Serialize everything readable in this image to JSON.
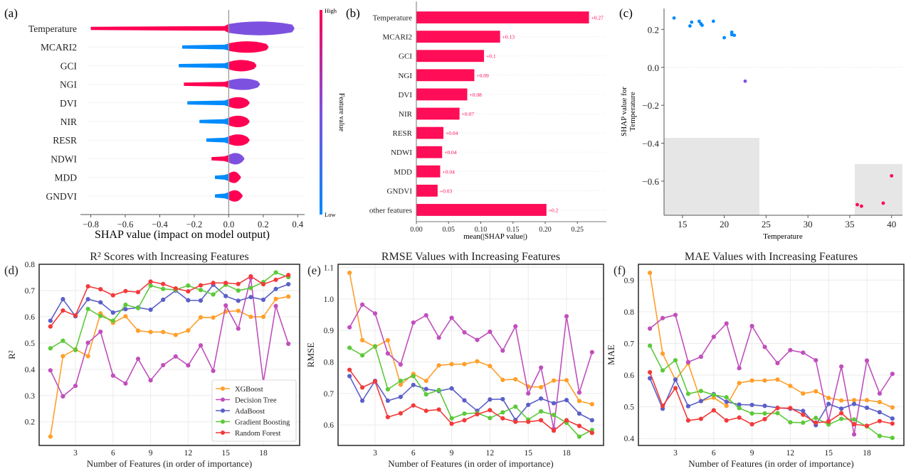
{
  "colors": {
    "shap_high": "#ff0052",
    "shap_mid": "#7d51e0",
    "shap_low": "#008bfb",
    "bar": "#ff0d57",
    "bar_label": "#ff0d57",
    "xgboost": "#ff9f2a",
    "decision_tree": "#c04fbd",
    "adaboost": "#5b5fc7",
    "gradient_boosting": "#5cc93a",
    "random_forest": "#f23a3a",
    "highlight": "#e6e6e6",
    "grid": "#ebebeb"
  },
  "chart_data": [
    {
      "id": "a",
      "panel_label": "(a)",
      "type": "violin",
      "title": "",
      "xlabel": "SHAP value (impact on model output)",
      "ylabel": "",
      "xlim": [
        -0.86,
        0.44
      ],
      "xticks": [
        "-0.8",
        "-0.6",
        "-0.4",
        "-0.2",
        "0.0",
        "0.2",
        "0.4"
      ],
      "xtick_values": [
        -0.8,
        -0.6,
        -0.4,
        -0.2,
        0.0,
        0.2,
        0.4
      ],
      "colorbar": {
        "label": "Feature value",
        "high": "High",
        "low": "Low"
      },
      "features": [
        {
          "name": "Temperature",
          "min": -0.8,
          "max": 0.38,
          "neg_color": "high",
          "pos_color": "mid"
        },
        {
          "name": "MCARI2",
          "min": -0.27,
          "max": 0.23,
          "neg_color": "low",
          "pos_color": "high"
        },
        {
          "name": "GCI",
          "min": -0.29,
          "max": 0.16,
          "neg_color": "low",
          "pos_color": "high"
        },
        {
          "name": "NGI",
          "min": -0.26,
          "max": 0.18,
          "neg_color": "high",
          "pos_color": "mid"
        },
        {
          "name": "DVI",
          "min": -0.24,
          "max": 0.12,
          "neg_color": "low",
          "pos_color": "high"
        },
        {
          "name": "NIR",
          "min": -0.17,
          "max": 0.12,
          "neg_color": "low",
          "pos_color": "high"
        },
        {
          "name": "RESR",
          "min": -0.13,
          "max": 0.12,
          "neg_color": "low",
          "pos_color": "high"
        },
        {
          "name": "NDWI",
          "min": -0.1,
          "max": 0.09,
          "neg_color": "high",
          "pos_color": "mid"
        },
        {
          "name": "MDD",
          "min": -0.08,
          "max": 0.07,
          "neg_color": "low",
          "pos_color": "high"
        },
        {
          "name": "GNDVI",
          "min": -0.08,
          "max": 0.08,
          "neg_color": "low",
          "pos_color": "high"
        }
      ]
    },
    {
      "id": "b",
      "panel_label": "(b)",
      "type": "bar",
      "orientation": "horizontal",
      "xlabel": "mean(|SHAP value|)",
      "ylabel": "",
      "xlim": [
        0,
        0.295
      ],
      "xticks": [
        "0.00",
        "0.05",
        "0.10",
        "0.15",
        "0.20",
        "0.25"
      ],
      "xtick_values": [
        0,
        0.05,
        0.1,
        0.15,
        0.2,
        0.25
      ],
      "categories": [
        "Temperature",
        "MCARI2",
        "GCI",
        "NGI",
        "DVI",
        "NIR",
        "RESR",
        "NDWI",
        "MDD",
        "GNDVI",
        "other features"
      ],
      "values": [
        0.268,
        0.13,
        0.105,
        0.09,
        0.079,
        0.067,
        0.042,
        0.04,
        0.037,
        0.033,
        0.202
      ],
      "labels": [
        "+0.27",
        "+0.13",
        "+0.1",
        "+0.09",
        "+0.08",
        "+0.07",
        "+0.04",
        "+0.04",
        "+0.04",
        "+0.03",
        "+0.2"
      ]
    },
    {
      "id": "c",
      "panel_label": "(c)",
      "type": "scatter",
      "xlabel": "Temperature",
      "ylabel": "SHAP value for\nTemperature",
      "ylabel_lines": [
        "SHAP value for",
        "Temperature"
      ],
      "xlim": [
        12.8,
        41.3
      ],
      "ylim": [
        -0.78,
        0.31
      ],
      "xticks": [
        "15",
        "20",
        "25",
        "30",
        "35",
        "40"
      ],
      "xtick_values": [
        15,
        20,
        25,
        30,
        35,
        40
      ],
      "yticks": [
        "0.2",
        "0.0",
        "−0.2",
        "−0.4",
        "−0.6"
      ],
      "ytick_values": [
        0.2,
        0.0,
        -0.2,
        -0.4,
        -0.6
      ],
      "highlight_regions": [
        {
          "x": [
            12.8,
            24.2
          ],
          "y": [
            -0.78,
            -0.372
          ]
        },
        {
          "x": [
            35.6,
            41.3
          ],
          "y": [
            -0.78,
            -0.51
          ]
        }
      ],
      "points": [
        {
          "x": 14.0,
          "y": 0.26,
          "c": "low"
        },
        {
          "x": 15.9,
          "y": 0.218,
          "c": "low"
        },
        {
          "x": 16.1,
          "y": 0.238,
          "c": "low"
        },
        {
          "x": 17.0,
          "y": 0.243,
          "c": "low"
        },
        {
          "x": 17.2,
          "y": 0.23,
          "c": "low"
        },
        {
          "x": 17.35,
          "y": 0.222,
          "c": "low"
        },
        {
          "x": 18.7,
          "y": 0.243,
          "c": "low"
        },
        {
          "x": 20.0,
          "y": 0.156,
          "c": "low"
        },
        {
          "x": 20.9,
          "y": 0.185,
          "c": "low"
        },
        {
          "x": 20.9,
          "y": 0.172,
          "c": "low"
        },
        {
          "x": 21.2,
          "y": 0.169,
          "c": "low"
        },
        {
          "x": 22.5,
          "y": -0.073,
          "c": "mid"
        },
        {
          "x": 35.9,
          "y": -0.724,
          "c": "high"
        },
        {
          "x": 36.4,
          "y": -0.732,
          "c": "high"
        },
        {
          "x": 39.0,
          "y": -0.716,
          "c": "high"
        },
        {
          "x": 40.0,
          "y": -0.572,
          "c": "high"
        }
      ]
    },
    {
      "id": "d",
      "panel_label": "(d)",
      "type": "line",
      "title": "R² Scores with Increasing Features",
      "xlabel": "Number of Features (in order of importance)",
      "ylabel": "R²",
      "xlim": [
        0.1,
        20.9
      ],
      "ylim": [
        0.11,
        0.8
      ],
      "xticks": [
        "3",
        "6",
        "9",
        "12",
        "15",
        "18"
      ],
      "xtick_values": [
        3,
        6,
        9,
        12,
        15,
        18
      ],
      "yticks": [
        "0.2",
        "0.3",
        "0.4",
        "0.5",
        "0.6",
        "0.7",
        "0.8"
      ],
      "ytick_values": [
        0.2,
        0.3,
        0.4,
        0.5,
        0.6,
        0.7,
        0.8
      ],
      "grid": true,
      "legend": "lower-right",
      "x": [
        1,
        2,
        3,
        4,
        5,
        6,
        7,
        8,
        9,
        10,
        11,
        12,
        13,
        14,
        15,
        16,
        17,
        18,
        19,
        20
      ],
      "series": [
        {
          "name": "XGBoost",
          "color_key": "xgboost",
          "values": [
            0.144,
            0.45,
            0.476,
            0.45,
            0.613,
            0.577,
            0.602,
            0.547,
            0.542,
            0.542,
            0.531,
            0.548,
            0.598,
            0.597,
            0.62,
            0.623,
            0.6,
            0.6,
            0.668,
            0.677
          ]
        },
        {
          "name": "Decision Tree",
          "color_key": "decision_tree",
          "values": [
            0.396,
            0.297,
            0.337,
            0.501,
            0.543,
            0.376,
            0.346,
            0.44,
            0.358,
            0.416,
            0.449,
            0.415,
            0.491,
            0.394,
            0.643,
            0.555,
            0.748,
            0.35,
            0.641,
            0.497
          ]
        },
        {
          "name": "AdaBoost",
          "color_key": "adaboost",
          "values": [
            0.585,
            0.667,
            0.602,
            0.667,
            0.655,
            0.616,
            0.629,
            0.635,
            0.627,
            0.665,
            0.7,
            0.663,
            0.662,
            0.722,
            0.679,
            0.661,
            0.675,
            0.665,
            0.706,
            0.724
          ]
        },
        {
          "name": "Gradient Boosting",
          "color_key": "gradient_boosting",
          "values": [
            0.48,
            0.509,
            0.473,
            0.63,
            0.603,
            0.585,
            0.646,
            0.633,
            0.719,
            0.706,
            0.703,
            0.719,
            0.702,
            0.685,
            0.722,
            0.7,
            0.71,
            0.732,
            0.769,
            0.751
          ]
        },
        {
          "name": "Random Forest",
          "color_key": "random_forest",
          "values": [
            0.563,
            0.624,
            0.605,
            0.716,
            0.705,
            0.682,
            0.698,
            0.694,
            0.734,
            0.725,
            0.708,
            0.697,
            0.72,
            0.729,
            0.729,
            0.725,
            0.754,
            0.724,
            0.741,
            0.759
          ]
        }
      ]
    },
    {
      "id": "e",
      "panel_label": "(e)",
      "type": "line",
      "title": "RMSE Values with Increasing Features",
      "xlabel": "Number of Features (in order of importance)",
      "ylabel": "RMSE",
      "xlim": [
        0.1,
        20.9
      ],
      "ylim": [
        0.535,
        1.11
      ],
      "xticks": [
        "3",
        "6",
        "9",
        "12",
        "15",
        "18"
      ],
      "xtick_values": [
        3,
        6,
        9,
        12,
        15,
        18
      ],
      "yticks": [
        "0.6",
        "0.7",
        "0.8",
        "0.9",
        "1.0",
        "1.1"
      ],
      "ytick_values": [
        0.6,
        0.7,
        0.8,
        0.9,
        1.0,
        1.1
      ],
      "grid": true,
      "x": [
        1,
        2,
        3,
        4,
        5,
        6,
        7,
        8,
        9,
        10,
        11,
        12,
        13,
        14,
        15,
        16,
        17,
        18,
        19,
        20
      ],
      "series": [
        {
          "name": "XGBoost",
          "color_key": "xgboost",
          "values": [
            1.083,
            0.869,
            0.848,
            0.869,
            0.728,
            0.762,
            0.74,
            0.789,
            0.793,
            0.793,
            0.802,
            0.787,
            0.743,
            0.745,
            0.722,
            0.72,
            0.741,
            0.742,
            0.676,
            0.666
          ]
        },
        {
          "name": "Decision Tree",
          "color_key": "decision_tree",
          "values": [
            0.91,
            0.982,
            0.954,
            0.827,
            0.792,
            0.925,
            0.948,
            0.877,
            0.94,
            0.894,
            0.87,
            0.896,
            0.836,
            0.913,
            0.7,
            0.782,
            0.588,
            0.945,
            0.703,
            0.831
          ]
        },
        {
          "name": "AdaBoost",
          "color_key": "adaboost",
          "values": [
            0.755,
            0.677,
            0.74,
            0.677,
            0.689,
            0.727,
            0.714,
            0.708,
            0.716,
            0.678,
            0.645,
            0.681,
            0.682,
            0.616,
            0.664,
            0.684,
            0.669,
            0.679,
            0.636,
            0.615
          ]
        },
        {
          "name": "Gradient Boosting",
          "color_key": "gradient_boosting",
          "values": [
            0.845,
            0.821,
            0.85,
            0.713,
            0.74,
            0.755,
            0.697,
            0.711,
            0.621,
            0.636,
            0.638,
            0.622,
            0.64,
            0.658,
            0.617,
            0.643,
            0.632,
            0.607,
            0.563,
            0.584
          ]
        },
        {
          "name": "Random Forest",
          "color_key": "random_forest",
          "values": [
            0.775,
            0.719,
            0.738,
            0.625,
            0.637,
            0.662,
            0.645,
            0.649,
            0.604,
            0.615,
            0.634,
            0.647,
            0.621,
            0.61,
            0.61,
            0.615,
            0.582,
            0.615,
            0.597,
            0.575
          ]
        }
      ]
    },
    {
      "id": "f",
      "panel_label": "(f)",
      "type": "line",
      "title": "MAE Values with Increasing Features",
      "xlabel": "Number of Features (in order of importance)",
      "ylabel": "MAE",
      "xlim": [
        0.1,
        20.9
      ],
      "ylim": [
        0.378,
        0.95
      ],
      "xticks": [
        "3",
        "6",
        "9",
        "12",
        "15",
        "18"
      ],
      "xtick_values": [
        3,
        6,
        9,
        12,
        15,
        18
      ],
      "yticks": [
        "0.4",
        "0.5",
        "0.6",
        "0.7",
        "0.8",
        "0.9"
      ],
      "ytick_values": [
        0.4,
        0.5,
        0.6,
        0.7,
        0.8,
        0.9
      ],
      "grid": true,
      "x": [
        1,
        2,
        3,
        4,
        5,
        6,
        7,
        8,
        9,
        10,
        11,
        12,
        13,
        14,
        15,
        16,
        17,
        18,
        19,
        20
      ],
      "series": [
        {
          "name": "XGBoost",
          "color_key": "xgboost",
          "values": [
            0.923,
            0.668,
            0.585,
            0.637,
            0.518,
            0.529,
            0.503,
            0.575,
            0.583,
            0.583,
            0.586,
            0.566,
            0.542,
            0.549,
            0.528,
            0.52,
            0.521,
            0.521,
            0.515,
            0.498
          ]
        },
        {
          "name": "Decision Tree",
          "color_key": "decision_tree",
          "values": [
            0.747,
            0.78,
            0.79,
            0.641,
            0.658,
            0.721,
            0.763,
            0.622,
            0.755,
            0.689,
            0.638,
            0.679,
            0.671,
            0.647,
            0.456,
            0.627,
            0.413,
            0.646,
            0.542,
            0.604
          ]
        },
        {
          "name": "AdaBoost",
          "color_key": "adaboost",
          "values": [
            0.59,
            0.494,
            0.586,
            0.502,
            0.518,
            0.54,
            0.516,
            0.507,
            0.506,
            0.503,
            0.497,
            0.494,
            0.487,
            0.442,
            0.509,
            0.494,
            0.509,
            0.497,
            0.483,
            0.463
          ]
        },
        {
          "name": "Gradient Boosting",
          "color_key": "gradient_boosting",
          "values": [
            0.693,
            0.615,
            0.647,
            0.541,
            0.55,
            0.538,
            0.53,
            0.496,
            0.479,
            0.479,
            0.48,
            0.451,
            0.45,
            0.465,
            0.444,
            0.462,
            0.46,
            0.438,
            0.408,
            0.402
          ]
        },
        {
          "name": "Random Forest",
          "color_key": "random_forest",
          "values": [
            0.609,
            0.503,
            0.559,
            0.457,
            0.462,
            0.489,
            0.457,
            0.466,
            0.445,
            0.461,
            0.496,
            0.496,
            0.475,
            0.45,
            0.453,
            0.48,
            0.445,
            0.44,
            0.455,
            0.447
          ]
        }
      ]
    }
  ]
}
